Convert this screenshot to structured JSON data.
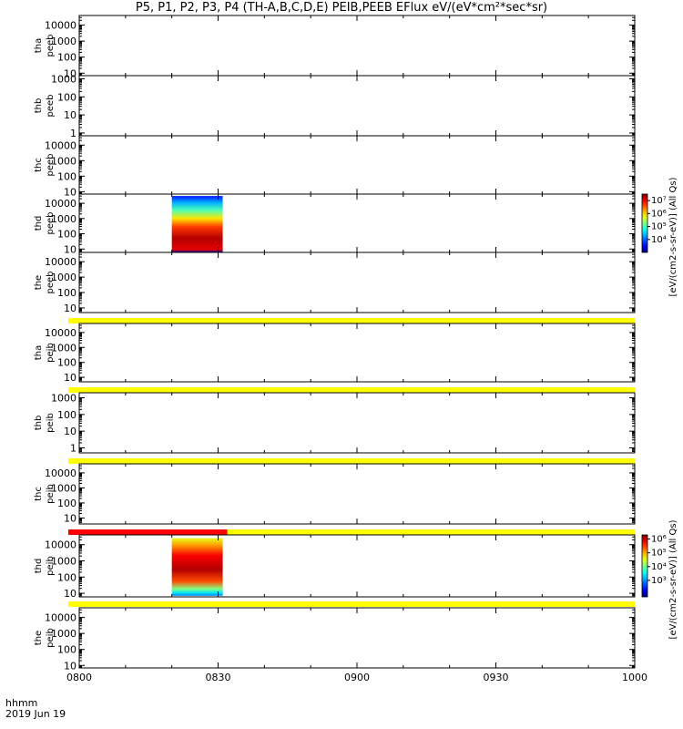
{
  "title": "P5, P1, P2, P3, P4 (TH-A,B,C,D,E) PEIB,PEEB EFlux eV/(eV*cm²*sec*sr)",
  "x_axis": {
    "corner_label": "hhmm",
    "date_label": "2019 Jun 19",
    "ticks": [
      "0800",
      "0830",
      "0900",
      "0930",
      "1000"
    ]
  },
  "chart_data": {
    "type": "heatmap",
    "x_range": [
      "08:00",
      "10:00"
    ],
    "x_tick_labels": [
      "0800",
      "0830",
      "0900",
      "0930",
      "1000"
    ],
    "y_scale": "log",
    "panels": [
      {
        "label_line1": "tha",
        "label_line2": "peeb",
        "ylim": [
          7,
          40000
        ],
        "ytick_labels": [
          "10000",
          "1000",
          "100",
          "10"
        ],
        "ytick_values": [
          10000,
          1000,
          100,
          10
        ],
        "has_data": false,
        "flag_bar_below": null
      },
      {
        "label_line1": "thb",
        "label_line2": "peeb",
        "ylim": [
          0.7,
          1500
        ],
        "ytick_labels": [
          "1000",
          "100",
          "10",
          "1"
        ],
        "ytick_values": [
          1000,
          100,
          10,
          1
        ],
        "has_data": false,
        "flag_bar_below": null
      },
      {
        "label_line1": "thc",
        "label_line2": "peeb",
        "ylim": [
          7,
          40000
        ],
        "ytick_labels": [
          "10000",
          "1000",
          "100",
          "10"
        ],
        "ytick_values": [
          10000,
          1000,
          100,
          10
        ],
        "has_data": false,
        "flag_bar_below": null
      },
      {
        "label_line1": "thd",
        "label_line2": "peeb",
        "ylim": [
          6,
          40000
        ],
        "ytick_labels": [
          "10000",
          "1000",
          "100",
          "10"
        ],
        "ytick_values": [
          10000,
          1000,
          100,
          10
        ],
        "has_data": true,
        "data_time_range": [
          "08:20",
          "08:31"
        ],
        "data_energy_range": [
          6,
          30000
        ],
        "colorbar": {
          "label": "[eV/(cm2-s-sr-eV)] (All Qs)",
          "log_range": [
            3,
            7.5
          ],
          "tick_labels": [
            "10⁷",
            "10⁶",
            "10⁵",
            "10⁴"
          ],
          "tick_values": [
            7,
            6,
            5,
            4
          ]
        },
        "flag_bar_below": null
      },
      {
        "label_line1": "the",
        "label_line2": "peeb",
        "ylim": [
          5,
          40000
        ],
        "ytick_labels": [
          "10000",
          "1000",
          "100",
          "10"
        ],
        "ytick_values": [
          10000,
          1000,
          100,
          10
        ],
        "has_data": false,
        "flag_bar_below": "yellow"
      },
      {
        "label_line1": "tha",
        "label_line2": "peib",
        "ylim": [
          5,
          40000
        ],
        "ytick_labels": [
          "10000",
          "1000",
          "100",
          "10"
        ],
        "ytick_values": [
          10000,
          1000,
          100,
          10
        ],
        "has_data": false,
        "flag_bar_below": "yellow"
      },
      {
        "label_line1": "thb",
        "label_line2": "peib",
        "ylim": [
          0.5,
          2000
        ],
        "ytick_labels": [
          "1000",
          "100",
          "10",
          "1"
        ],
        "ytick_values": [
          1000,
          100,
          10,
          1
        ],
        "has_data": false,
        "flag_bar_below": "yellow"
      },
      {
        "label_line1": "thc",
        "label_line2": "peib",
        "ylim": [
          4,
          40000
        ],
        "ytick_labels": [
          "10000",
          "1000",
          "100",
          "10"
        ],
        "ytick_values": [
          10000,
          1000,
          100,
          10
        ],
        "has_data": false,
        "flag_bar_below": "red-then-yellow",
        "flag_red_until": "08:32"
      },
      {
        "label_line1": "thd",
        "label_line2": "peib",
        "ylim": [
          6,
          40000
        ],
        "ytick_labels": [
          "10000",
          "1000",
          "100",
          "10"
        ],
        "ytick_values": [
          10000,
          1000,
          100,
          10
        ],
        "has_data": true,
        "data_time_range": [
          "08:20",
          "08:31"
        ],
        "data_energy_range": [
          7,
          25000
        ],
        "colorbar": {
          "label": "[eV/(cm2-s-sr-eV)] (All Qs)",
          "log_range": [
            1.8,
            6.3
          ],
          "tick_labels": [
            "10⁶",
            "10⁵",
            "10⁴",
            "10³"
          ],
          "tick_values": [
            6,
            5,
            4,
            3
          ]
        },
        "flag_bar_below": "yellow"
      },
      {
        "label_line1": "the",
        "label_line2": "peib",
        "ylim": [
          7,
          40000
        ],
        "ytick_labels": [
          "10000",
          "1000",
          "100",
          "10"
        ],
        "ytick_values": [
          10000,
          1000,
          100,
          10
        ],
        "has_data": false,
        "flag_bar_below": null
      }
    ],
    "colors": {
      "flag_yellow": "#ffff00",
      "flag_red": "#ff0000"
    }
  }
}
